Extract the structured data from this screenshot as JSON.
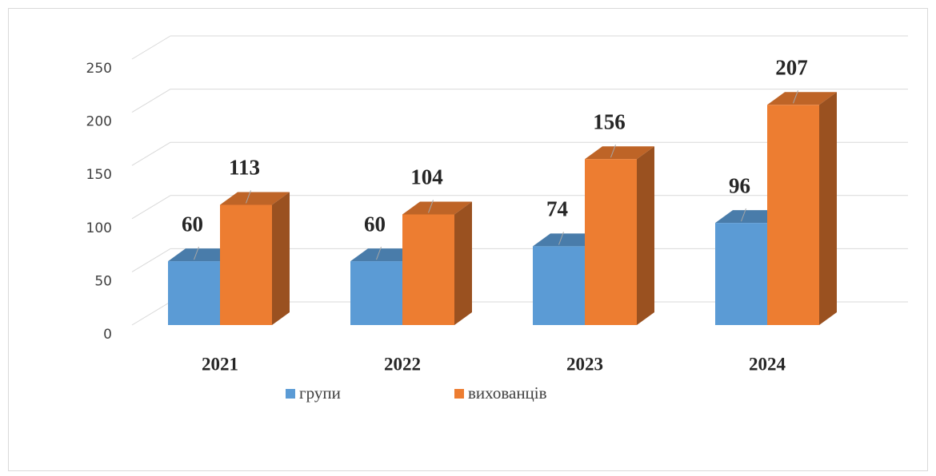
{
  "chart_data": {
    "type": "bar3d",
    "categories": [
      "2021",
      "2022",
      "2023",
      "2024"
    ],
    "series": [
      {
        "name": "групи",
        "color": "#5b9bd5",
        "values": [
          60,
          60,
          74,
          96
        ]
      },
      {
        "name": "вихованців",
        "color": "#ed7d31",
        "values": [
          113,
          104,
          156,
          207
        ]
      }
    ],
    "ylim": [
      0,
      250
    ],
    "yticks": [
      0,
      50,
      100,
      150,
      200,
      250
    ],
    "grid": true,
    "legend": "bottom"
  }
}
